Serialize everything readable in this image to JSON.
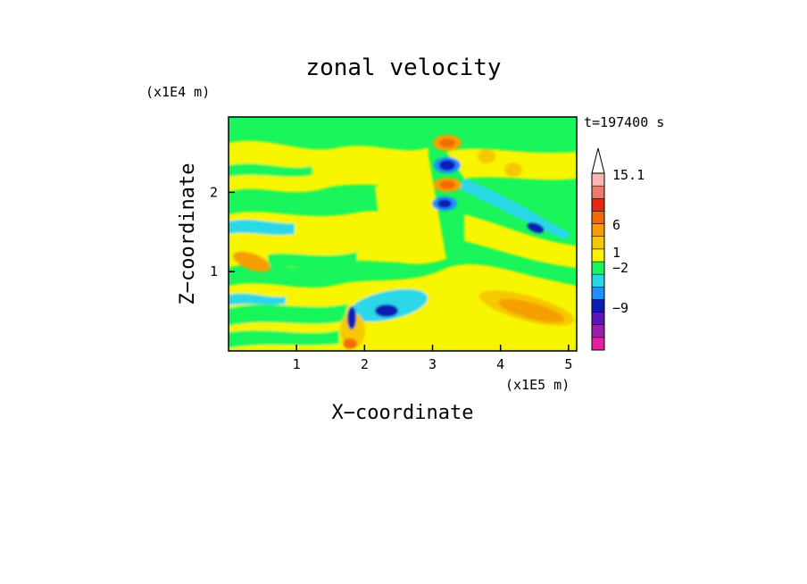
{
  "chart_data": {
    "type": "heatmap",
    "title": "zonal velocity",
    "xlabel": "X−coordinate",
    "ylabel": "Z−coordinate",
    "x_unit": "(x1E5 m)",
    "y_unit": "(x1E4 m)",
    "time_label": "t=197400 s",
    "xlim": [
      0.0,
      5.12
    ],
    "ylim": [
      0.0,
      2.95
    ],
    "x_ticks": [
      1,
      2,
      3,
      4,
      5
    ],
    "y_ticks": [
      1,
      2
    ],
    "colorbar": {
      "labels": [
        "15.1",
        "6",
        "1",
        "−2",
        "−9"
      ],
      "label_levels": [
        15.1,
        6,
        1,
        -2,
        -9
      ],
      "colors": [
        "#e81ea0",
        "#9d1dac",
        "#5c16b8",
        "#0d1db4",
        "#1e90ff",
        "#29d8e8",
        "#19f55a",
        "#f7f500",
        "#f5c800",
        "#f5a000",
        "#f46a00",
        "#e42a12",
        "#ef7a6a",
        "#fab5b5"
      ]
    },
    "features": [
      {
        "x": 3.15,
        "z": 2.65,
        "value": 8
      },
      {
        "x": 3.15,
        "z": 2.4,
        "value": -9
      },
      {
        "x": 3.15,
        "z": 2.1,
        "value": 6
      },
      {
        "x": 3.15,
        "z": 1.85,
        "value": -8
      },
      {
        "x": 2.35,
        "z": 0.5,
        "value": -6
      },
      {
        "x": 1.8,
        "z": 0.4,
        "value": -9
      },
      {
        "x": 4.4,
        "z": 0.55,
        "value": 5
      },
      {
        "x": 0.3,
        "z": 1.15,
        "value": 4
      },
      {
        "x": 5.0,
        "z": 1.55,
        "value": -5
      }
    ]
  }
}
